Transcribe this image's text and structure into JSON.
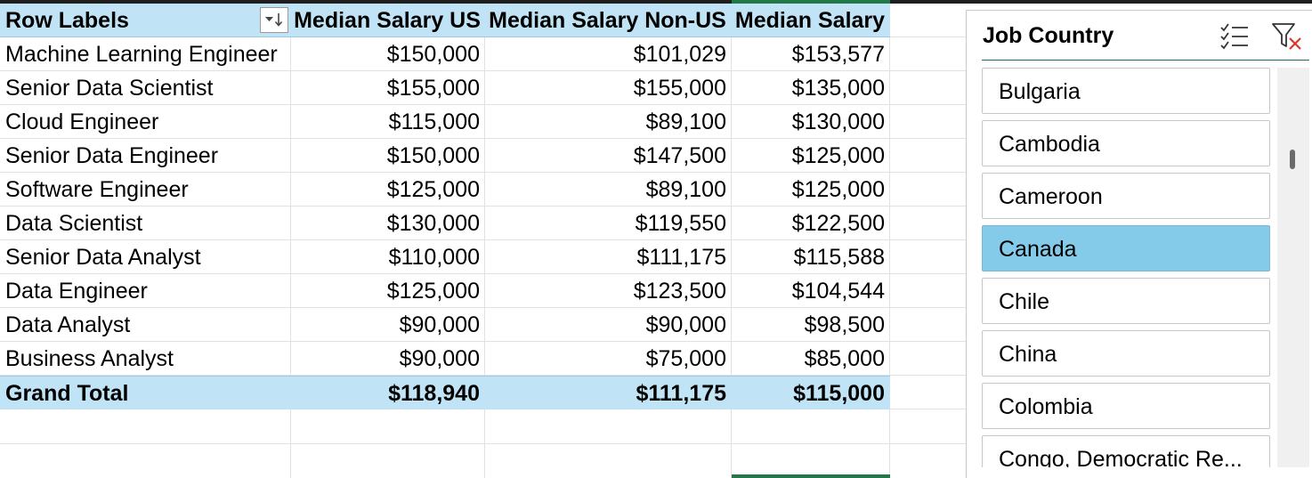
{
  "pivot": {
    "headers": [
      "Row Labels",
      "Median Salary US",
      "Median Salary Non-US",
      "Median Salary"
    ],
    "rows": [
      {
        "label": "Machine Learning Engineer",
        "us": "$150,000",
        "non_us": "$101,029",
        "all": "$153,577"
      },
      {
        "label": "Senior Data Scientist",
        "us": "$155,000",
        "non_us": "$155,000",
        "all": "$135,000"
      },
      {
        "label": "Cloud Engineer",
        "us": "$115,000",
        "non_us": "$89,100",
        "all": "$130,000"
      },
      {
        "label": "Senior Data Engineer",
        "us": "$150,000",
        "non_us": "$147,500",
        "all": "$125,000"
      },
      {
        "label": "Software Engineer",
        "us": "$125,000",
        "non_us": "$89,100",
        "all": "$125,000"
      },
      {
        "label": "Data Scientist",
        "us": "$130,000",
        "non_us": "$119,550",
        "all": "$122,500"
      },
      {
        "label": "Senior Data Analyst",
        "us": "$110,000",
        "non_us": "$111,175",
        "all": "$115,588"
      },
      {
        "label": "Data Engineer",
        "us": "$125,000",
        "non_us": "$123,500",
        "all": "$104,544"
      },
      {
        "label": "Data Analyst",
        "us": "$90,000",
        "non_us": "$90,000",
        "all": "$98,500"
      },
      {
        "label": "Business Analyst",
        "us": "$90,000",
        "non_us": "$75,000",
        "all": "$85,000"
      }
    ],
    "total": {
      "label": "Grand Total",
      "us": "$118,940",
      "non_us": "$111,175",
      "all": "$115,000"
    },
    "filter_icon": "sort-descending-filter-icon"
  },
  "slicer": {
    "title": "Job Country",
    "items": [
      {
        "label": "Bulgaria",
        "selected": false
      },
      {
        "label": "Cambodia",
        "selected": false
      },
      {
        "label": "Cameroon",
        "selected": false
      },
      {
        "label": "Canada",
        "selected": true
      },
      {
        "label": "Chile",
        "selected": false
      },
      {
        "label": "China",
        "selected": false
      },
      {
        "label": "Colombia",
        "selected": false
      },
      {
        "label": "Congo, Democratic Re...",
        "selected": false
      }
    ],
    "multiselect_icon": "multi-select-icon",
    "clear_icon": "clear-filter-icon"
  },
  "colors": {
    "header_fill": "#c0e4f5",
    "selected_item": "#84cbea",
    "selection_green": "#21794a",
    "clear_x": "#e0352b"
  }
}
